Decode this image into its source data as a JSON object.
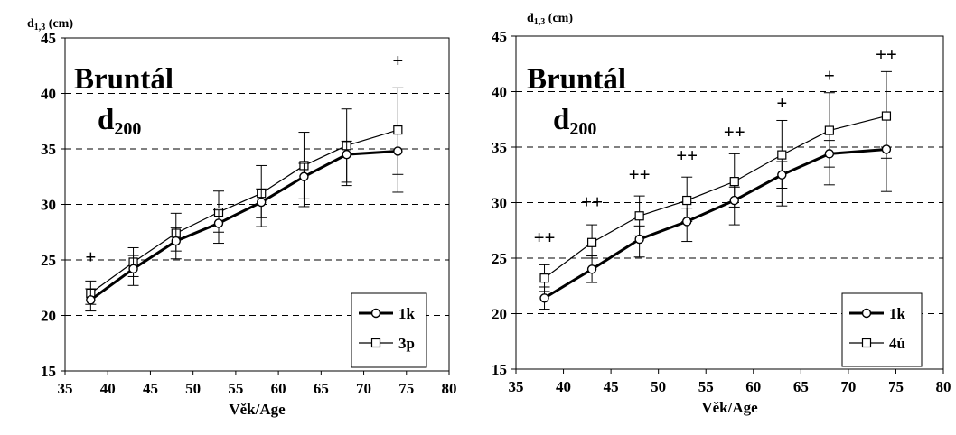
{
  "chart_data": [
    {
      "type": "line",
      "title": "Bruntál",
      "subtitle_main": "d",
      "subtitle_sub": "200",
      "ylabel_main": "d",
      "ylabel_sub": "1,3",
      "ylabel_unit": "(cm)",
      "xlabel": "Věk/Age",
      "xlim": [
        35,
        80
      ],
      "ylim": [
        15,
        45
      ],
      "xticks": [
        35,
        40,
        45,
        50,
        55,
        60,
        65,
        70,
        75,
        80
      ],
      "yticks": [
        15,
        20,
        25,
        30,
        35,
        40,
        45
      ],
      "grid": "horizontal dashed",
      "legend_position": "bottom-right",
      "series": [
        {
          "name": "1k",
          "marker": "circle",
          "line": "thick",
          "x": [
            38,
            43,
            48,
            53,
            58,
            63,
            68,
            74
          ],
          "y": [
            21.4,
            24.2,
            26.7,
            28.3,
            30.2,
            32.5,
            34.5,
            34.8
          ],
          "error_high": [
            22.4,
            25.4,
            27.9,
            29.5,
            31.4,
            33.7,
            35.7,
            35.0
          ],
          "error_low": [
            20.4,
            22.7,
            25.1,
            26.5,
            28.0,
            29.8,
            31.7,
            31.1
          ]
        },
        {
          "name": "3p",
          "marker": "square",
          "line": "thin",
          "x": [
            38,
            43,
            48,
            53,
            58,
            63,
            68,
            74
          ],
          "y": [
            22.0,
            24.8,
            27.4,
            29.3,
            31.0,
            33.5,
            35.3,
            36.7
          ],
          "error_high": [
            23.1,
            26.1,
            29.2,
            31.2,
            33.5,
            36.5,
            38.6,
            40.5
          ],
          "error_low": [
            21.0,
            23.5,
            25.8,
            27.5,
            28.8,
            30.5,
            32.0,
            32.7
          ]
        }
      ],
      "annotations": [
        {
          "x": 38,
          "y": 24.7,
          "text": "+"
        },
        {
          "x": 74,
          "y": 42.4,
          "text": "+"
        }
      ]
    },
    {
      "type": "line",
      "title": "Bruntál",
      "subtitle_main": "d",
      "subtitle_sub": "200",
      "ylabel_main": "d",
      "ylabel_sub": "1,3",
      "ylabel_unit": "(cm)",
      "xlabel": "Věk/Age",
      "xlim": [
        35,
        80
      ],
      "ylim": [
        15,
        45
      ],
      "xticks": [
        35,
        40,
        45,
        50,
        55,
        60,
        65,
        70,
        75,
        80
      ],
      "yticks": [
        15,
        20,
        25,
        30,
        35,
        40,
        45
      ],
      "grid": "horizontal dashed",
      "legend_position": "bottom-right",
      "series": [
        {
          "name": "1k",
          "marker": "circle",
          "line": "thick",
          "x": [
            38,
            43,
            48,
            53,
            58,
            63,
            68,
            74
          ],
          "y": [
            21.4,
            24.0,
            26.7,
            28.3,
            30.2,
            32.5,
            34.4,
            34.8
          ],
          "error_high": [
            22.4,
            25.2,
            27.9,
            29.5,
            31.4,
            33.7,
            35.6,
            35.0
          ],
          "error_low": [
            20.4,
            22.8,
            25.1,
            26.5,
            28.0,
            29.7,
            31.6,
            31.0
          ]
        },
        {
          "name": "4ú",
          "marker": "square",
          "line": "thin",
          "x": [
            38,
            43,
            48,
            53,
            58,
            63,
            68,
            74
          ],
          "y": [
            23.2,
            26.4,
            28.8,
            30.2,
            31.9,
            34.3,
            36.5,
            37.8
          ],
          "error_high": [
            24.4,
            28.0,
            30.6,
            32.3,
            34.4,
            37.4,
            39.9,
            41.8
          ],
          "error_low": [
            22.0,
            25.0,
            27.0,
            28.3,
            29.6,
            31.3,
            33.2,
            34.0
          ]
        }
      ],
      "annotations": [
        {
          "x": 38,
          "y": 26.3,
          "text": "++"
        },
        {
          "x": 43,
          "y": 29.5,
          "text": "++"
        },
        {
          "x": 48,
          "y": 32.0,
          "text": "++"
        },
        {
          "x": 53,
          "y": 33.7,
          "text": "++"
        },
        {
          "x": 58,
          "y": 35.8,
          "text": "++"
        },
        {
          "x": 63,
          "y": 38.4,
          "text": "+"
        },
        {
          "x": 68,
          "y": 40.9,
          "text": "+"
        },
        {
          "x": 74,
          "y": 42.8,
          "text": "++"
        }
      ]
    }
  ]
}
